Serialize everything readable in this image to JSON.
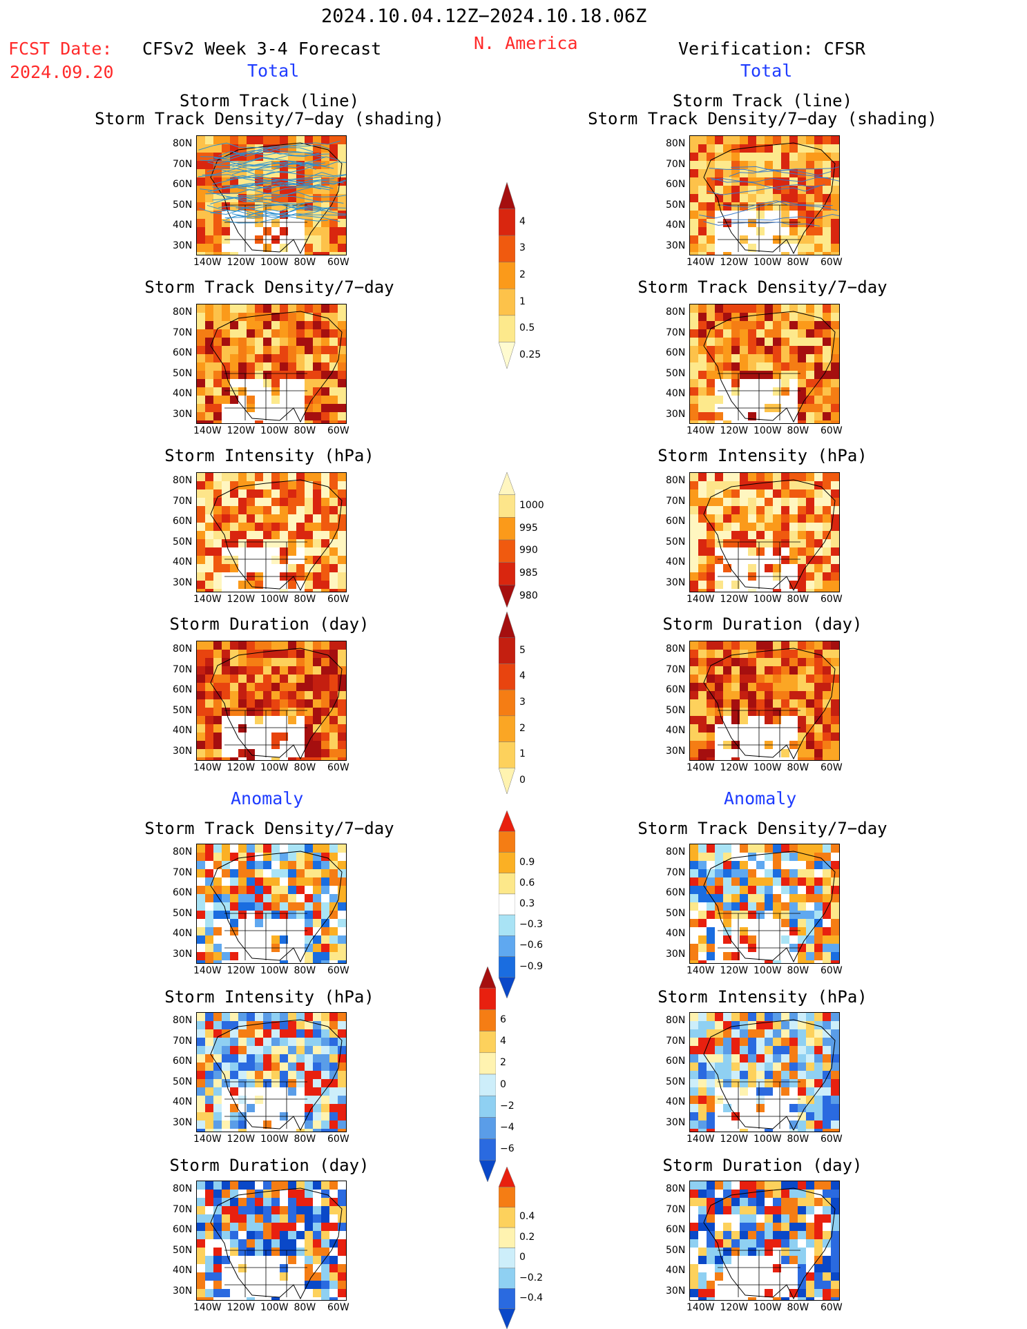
{
  "header": {
    "period": "2024.10.04.12Z−2024.10.18.06Z",
    "region": "N. America",
    "fcst_label": "FCST Date:",
    "fcst_date": "2024.09.20",
    "left_title": "CFSv2 Week 3-4 Forecast",
    "right_title": "Verification: CFSR",
    "total_left": "Total",
    "total_right": "Total",
    "anomaly_left": "Anomaly",
    "anomaly_right": "Anomaly"
  },
  "panels": {
    "p1_title_line1": "Storm Track (line)",
    "p1_title_line2": "Storm Track Density/7−day (shading)",
    "p2_title": "Storm Track Density/7−day",
    "p3_title": "Storm Intensity (hPa)",
    "p4_title": "Storm Duration (day)",
    "a1_title": "Storm Track Density/7−day",
    "a2_title": "Storm Intensity (hPa)",
    "a3_title": "Storm Duration (day)"
  },
  "axes": {
    "lat_labels": [
      "80N",
      "70N",
      "60N",
      "50N",
      "40N",
      "30N"
    ],
    "lon_labels": [
      "140W",
      "120W",
      "100W",
      "80W",
      "60W"
    ]
  },
  "colorbars": {
    "density": {
      "labels": [
        "4",
        "3",
        "2",
        "1",
        "0.5",
        "0.25"
      ],
      "colors": [
        "#a50f0f",
        "#d9260f",
        "#f05a0f",
        "#fb9a1a",
        "#fdc24a",
        "#fde98c",
        "#fffbd0"
      ]
    },
    "intensity": {
      "labels": [
        "1000",
        "995",
        "990",
        "985",
        "980"
      ],
      "colors": [
        "#fff6c0",
        "#fde58a",
        "#fb9a1a",
        "#f05a0f",
        "#d9260f",
        "#a50f0f"
      ]
    },
    "duration": {
      "labels": [
        "5",
        "4",
        "3",
        "2",
        "1",
        "0"
      ],
      "colors": [
        "#a50f0f",
        "#c41f10",
        "#e8440f",
        "#f57d14",
        "#fba624",
        "#fdd15c",
        "#fff3b0"
      ]
    },
    "density_anom": {
      "labels": [
        "0.9",
        "0.6",
        "0.3",
        "−0.3",
        "−0.6",
        "−0.9"
      ],
      "colors": [
        "#e8200f",
        "#f57d14",
        "#fbb024",
        "#fde88a",
        "#ffffff",
        "#a9e3f5",
        "#5fa8f0",
        "#1a6de0",
        "#0a48c8"
      ]
    },
    "intensity_anom": {
      "labels": [
        "6",
        "4",
        "2",
        "0",
        "−2",
        "−4",
        "−6"
      ],
      "colors": [
        "#a50f0f",
        "#e8200f",
        "#f57d14",
        "#fdd15c",
        "#fff3b0",
        "#cdeefa",
        "#8fd0f2",
        "#5a9de8",
        "#2a6ae0",
        "#0a48c8"
      ]
    },
    "duration_anom": {
      "labels": [
        "0.4",
        "0.2",
        "0",
        "−0.2",
        "−0.4"
      ],
      "colors": [
        "#e8200f",
        "#f57d14",
        "#fdd15c",
        "#fff3b0",
        "#cdeefa",
        "#8fd0f2",
        "#2a6ae0",
        "#0a48c8"
      ]
    }
  },
  "colors": {
    "red_text": "#ff2a2a",
    "blue_text": "#1f3cff"
  }
}
